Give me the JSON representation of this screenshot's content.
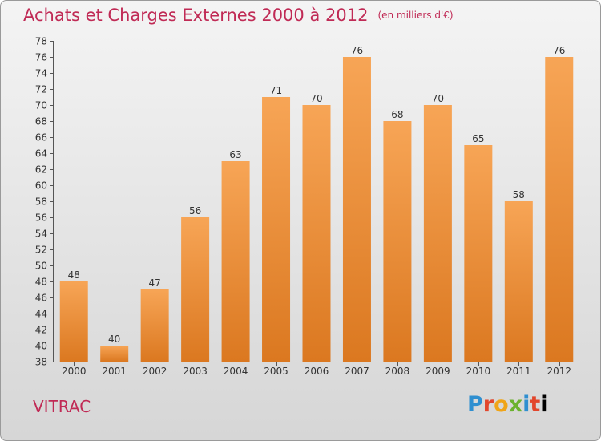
{
  "title": "Achats et Charges Externes 2000 à 2012",
  "unit": "(en milliers d'€)",
  "commune": "VITRAC",
  "logo": [
    "P",
    "r",
    "o",
    "x",
    "i",
    "t",
    "i"
  ],
  "colors": {
    "bar_top": "#f7a556",
    "bar_bottom": "#db7820",
    "title": "#c02a55"
  },
  "chart_data": {
    "type": "bar",
    "categories": [
      "2000",
      "2001",
      "2002",
      "2003",
      "2004",
      "2005",
      "2006",
      "2007",
      "2008",
      "2009",
      "2010",
      "2011",
      "2012"
    ],
    "values": [
      48,
      40,
      47,
      56,
      63,
      71,
      70,
      76,
      68,
      70,
      65,
      58,
      76
    ],
    "ylim": [
      38,
      78
    ],
    "ytick_step": 2,
    "grid": false,
    "data_labels": true
  }
}
